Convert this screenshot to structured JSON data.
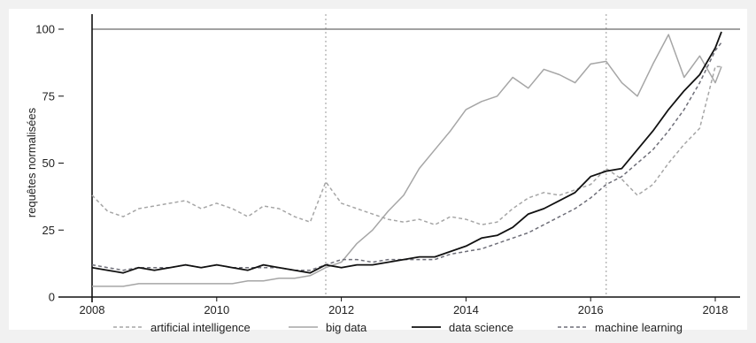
{
  "chart_data": {
    "type": "line",
    "title": "",
    "xlabel": "",
    "ylabel": "requêtes normalisées",
    "xlim": [
      2008,
      2018.35
    ],
    "ylim": [
      0,
      100
    ],
    "x_ticks": [
      2008,
      2010,
      2012,
      2014,
      2016,
      2018
    ],
    "x_tick_labels": [
      "2008",
      "2010",
      "2012",
      "2014",
      "2016",
      "2018"
    ],
    "y_ticks": [
      0,
      25,
      50,
      75,
      100
    ],
    "y_tick_labels": [
      "0",
      "25",
      "50",
      "75",
      "100"
    ],
    "reference_lines": {
      "horizontal": [
        100
      ],
      "vertical": [
        2011.75,
        2016.25
      ]
    },
    "grid": false,
    "legend_position": "bottom",
    "series": [
      {
        "name": "artificial intelligence",
        "color": "#a6a6a6",
        "style": "dashed",
        "x": [
          2008.0,
          2008.25,
          2008.5,
          2008.75,
          2009.0,
          2009.25,
          2009.5,
          2009.75,
          2010.0,
          2010.25,
          2010.5,
          2010.75,
          2011.0,
          2011.25,
          2011.5,
          2011.75,
          2012.0,
          2012.25,
          2012.5,
          2012.75,
          2013.0,
          2013.25,
          2013.5,
          2013.75,
          2014.0,
          2014.25,
          2014.5,
          2014.75,
          2015.0,
          2015.25,
          2015.5,
          2015.75,
          2016.0,
          2016.25,
          2016.5,
          2016.75,
          2017.0,
          2017.25,
          2017.5,
          2017.75,
          2018.0,
          2018.1
        ],
        "y": [
          38,
          32,
          30,
          33,
          34,
          35,
          36,
          33,
          35,
          33,
          30,
          34,
          33,
          30,
          28,
          43,
          35,
          33,
          31,
          29,
          28,
          29,
          27,
          30,
          29,
          27,
          28,
          33,
          37,
          39,
          38,
          40,
          42,
          48,
          44,
          38,
          42,
          50,
          57,
          63,
          86,
          86
        ]
      },
      {
        "name": "big data",
        "color": "#a6a6a6",
        "style": "solid",
        "x": [
          2008.0,
          2008.25,
          2008.5,
          2008.75,
          2009.0,
          2009.25,
          2009.5,
          2009.75,
          2010.0,
          2010.25,
          2010.5,
          2010.75,
          2011.0,
          2011.25,
          2011.5,
          2011.75,
          2012.0,
          2012.25,
          2012.5,
          2012.75,
          2013.0,
          2013.25,
          2013.5,
          2013.75,
          2014.0,
          2014.25,
          2014.5,
          2014.75,
          2015.0,
          2015.25,
          2015.5,
          2015.75,
          2016.0,
          2016.25,
          2016.5,
          2016.75,
          2017.0,
          2017.25,
          2017.5,
          2017.75,
          2018.0,
          2018.1
        ],
        "y": [
          4,
          4,
          4,
          5,
          5,
          5,
          5,
          5,
          5,
          5,
          6,
          6,
          7,
          7,
          8,
          11,
          13,
          20,
          25,
          32,
          38,
          48,
          55,
          62,
          70,
          73,
          75,
          82,
          78,
          85,
          83,
          80,
          87,
          88,
          80,
          75,
          87,
          98,
          82,
          90,
          80,
          86
        ]
      },
      {
        "name": "data science",
        "color": "#111111",
        "style": "solid",
        "x": [
          2008.0,
          2008.25,
          2008.5,
          2008.75,
          2009.0,
          2009.25,
          2009.5,
          2009.75,
          2010.0,
          2010.25,
          2010.5,
          2010.75,
          2011.0,
          2011.25,
          2011.5,
          2011.75,
          2012.0,
          2012.25,
          2012.5,
          2012.75,
          2013.0,
          2013.25,
          2013.5,
          2013.75,
          2014.0,
          2014.25,
          2014.5,
          2014.75,
          2015.0,
          2015.25,
          2015.5,
          2015.75,
          2016.0,
          2016.25,
          2016.5,
          2016.75,
          2017.0,
          2017.25,
          2017.5,
          2017.75,
          2018.0,
          2018.1
        ],
        "y": [
          11,
          10,
          9,
          11,
          10,
          11,
          12,
          11,
          12,
          11,
          10,
          12,
          11,
          10,
          9,
          12,
          11,
          12,
          12,
          13,
          14,
          15,
          15,
          17,
          19,
          22,
          23,
          26,
          31,
          33,
          36,
          39,
          45,
          47,
          48,
          55,
          62,
          70,
          77,
          83,
          93,
          99
        ]
      },
      {
        "name": "machine learning",
        "color": "#6e6e78",
        "style": "dashed",
        "x": [
          2008.0,
          2008.25,
          2008.5,
          2008.75,
          2009.0,
          2009.25,
          2009.5,
          2009.75,
          2010.0,
          2010.25,
          2010.5,
          2010.75,
          2011.0,
          2011.25,
          2011.5,
          2011.75,
          2012.0,
          2012.25,
          2012.5,
          2012.75,
          2013.0,
          2013.25,
          2013.5,
          2013.75,
          2014.0,
          2014.25,
          2014.5,
          2014.75,
          2015.0,
          2015.25,
          2015.5,
          2015.75,
          2016.0,
          2016.25,
          2016.5,
          2016.75,
          2017.0,
          2017.25,
          2017.5,
          2017.75,
          2018.0,
          2018.1
        ],
        "y": [
          12,
          11,
          10,
          11,
          11,
          11,
          12,
          11,
          12,
          11,
          11,
          11,
          11,
          10,
          10,
          12,
          14,
          14,
          13,
          14,
          14,
          14,
          14,
          16,
          17,
          18,
          20,
          22,
          24,
          27,
          30,
          33,
          37,
          42,
          45,
          50,
          55,
          62,
          70,
          80,
          92,
          95
        ]
      }
    ]
  }
}
